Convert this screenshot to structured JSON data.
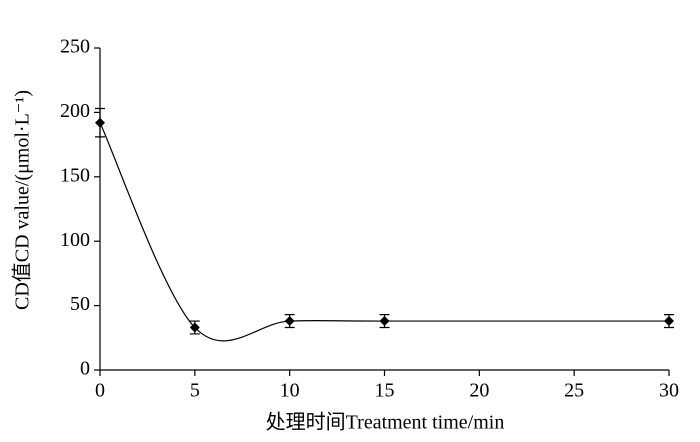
{
  "chart_data": {
    "type": "line",
    "smooth": true,
    "marker": "diamond",
    "color": "#000000",
    "x": [
      0,
      5,
      10,
      15,
      30
    ],
    "values": [
      192,
      33,
      38,
      38,
      38
    ],
    "errors": [
      11,
      5,
      5,
      5,
      5
    ],
    "xlim": [
      0,
      30
    ],
    "xticks": [
      0,
      5,
      10,
      15,
      20,
      25,
      30
    ],
    "ylim": [
      0,
      250
    ],
    "yticks": [
      0,
      50,
      100,
      150,
      200,
      250
    ],
    "grid": false,
    "x_label": "处理时间Treatment time/min",
    "y_label": "CD值CD value/(μmol·L⁻¹)"
  }
}
